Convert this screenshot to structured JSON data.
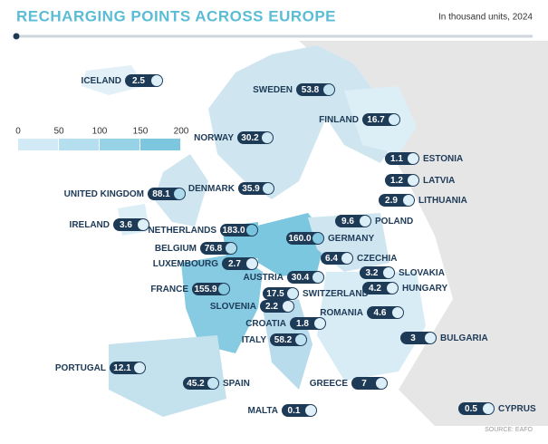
{
  "header": {
    "title": "RECHARGING POINTS ACROSS EUROPE",
    "subtitle": "In thousand units, 2024"
  },
  "legend": {
    "ticks": [
      0,
      50,
      100,
      150,
      200
    ]
  },
  "countries": [
    {
      "name": "ICELAND",
      "value": 2.5
    },
    {
      "name": "SWEDEN",
      "value": 53.8
    },
    {
      "name": "FINLAND",
      "value": 16.7
    },
    {
      "name": "NORWAY",
      "value": 30.2
    },
    {
      "name": "ESTONIA",
      "value": 1.1
    },
    {
      "name": "LATVIA",
      "value": 1.2
    },
    {
      "name": "LITHUANIA",
      "value": 2.9
    },
    {
      "name": "UNITED KINGDOM",
      "value": 88.1
    },
    {
      "name": "DENMARK",
      "value": 35.9
    },
    {
      "name": "IRELAND",
      "value": 3.6
    },
    {
      "name": "POLAND",
      "value": 9.6
    },
    {
      "name": "NETHERLANDS",
      "value": 183,
      "label": "183.0"
    },
    {
      "name": "GERMANY",
      "value": 160,
      "label": "160.0"
    },
    {
      "name": "CZECHIA",
      "value": 6.4
    },
    {
      "name": "BELGIUM",
      "value": 76.8
    },
    {
      "name": "LUXEMBOURG",
      "value": 2.7
    },
    {
      "name": "SLOVAKIA",
      "value": 3.2
    },
    {
      "name": "AUSTRIA",
      "value": 30.4
    },
    {
      "name": "FRANCE",
      "value": 155.9
    },
    {
      "name": "SWITZERLAND",
      "value": 17.5
    },
    {
      "name": "HUNGARY",
      "value": 4.2
    },
    {
      "name": "SLOVENIA",
      "value": 2.2
    },
    {
      "name": "ROMANIA",
      "value": 4.6
    },
    {
      "name": "CROATIA",
      "value": 1.8
    },
    {
      "name": "BULGARIA",
      "value": 3.0
    },
    {
      "name": "ITALY",
      "value": 58.2
    },
    {
      "name": "PORTUGAL",
      "value": 12.1
    },
    {
      "name": "SPAIN",
      "value": 45.2
    },
    {
      "name": "GREECE",
      "value": 7.0
    },
    {
      "name": "MALTA",
      "value": 0.1
    },
    {
      "name": "CYPRUS",
      "value": 0.5
    }
  ],
  "source": "SOURCE: EAFO"
}
